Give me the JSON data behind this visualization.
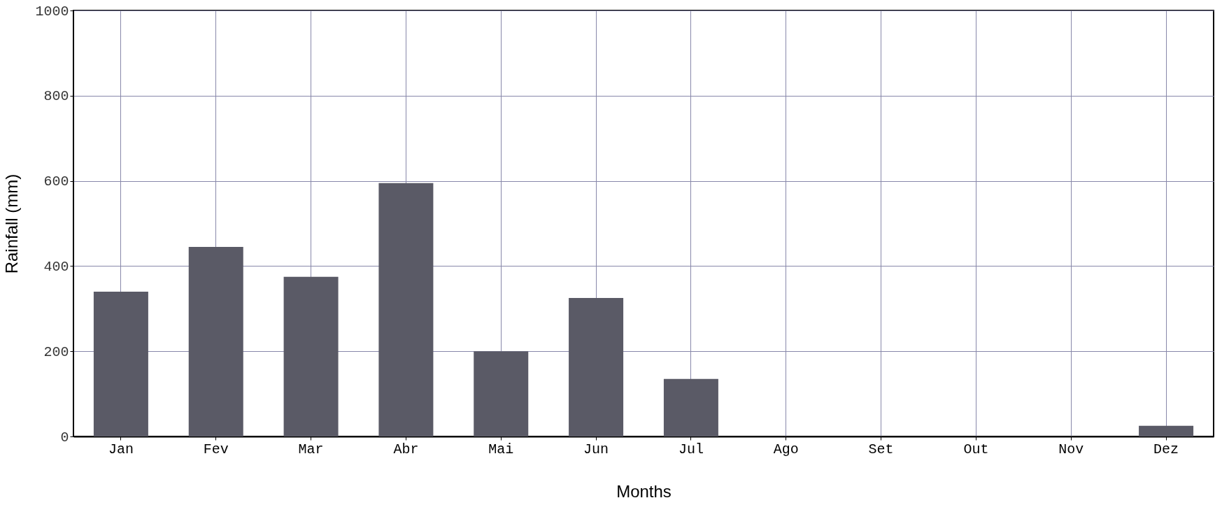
{
  "chart_data": {
    "type": "bar",
    "xlabel": "Months",
    "ylabel": "Rainfall (mm)",
    "categories": [
      "Jan",
      "Fev",
      "Mar",
      "Abr",
      "Mai",
      "Jun",
      "Jul",
      "Ago",
      "Set",
      "Out",
      "Nov",
      "Dez"
    ],
    "values": [
      340,
      445,
      375,
      595,
      200,
      325,
      135,
      0,
      0,
      0,
      0,
      25
    ],
    "color": "#5a5a66",
    "ylim": [
      0,
      1000
    ],
    "yticks": [
      0,
      200,
      400,
      600,
      800,
      1000
    ],
    "grid": true
  }
}
